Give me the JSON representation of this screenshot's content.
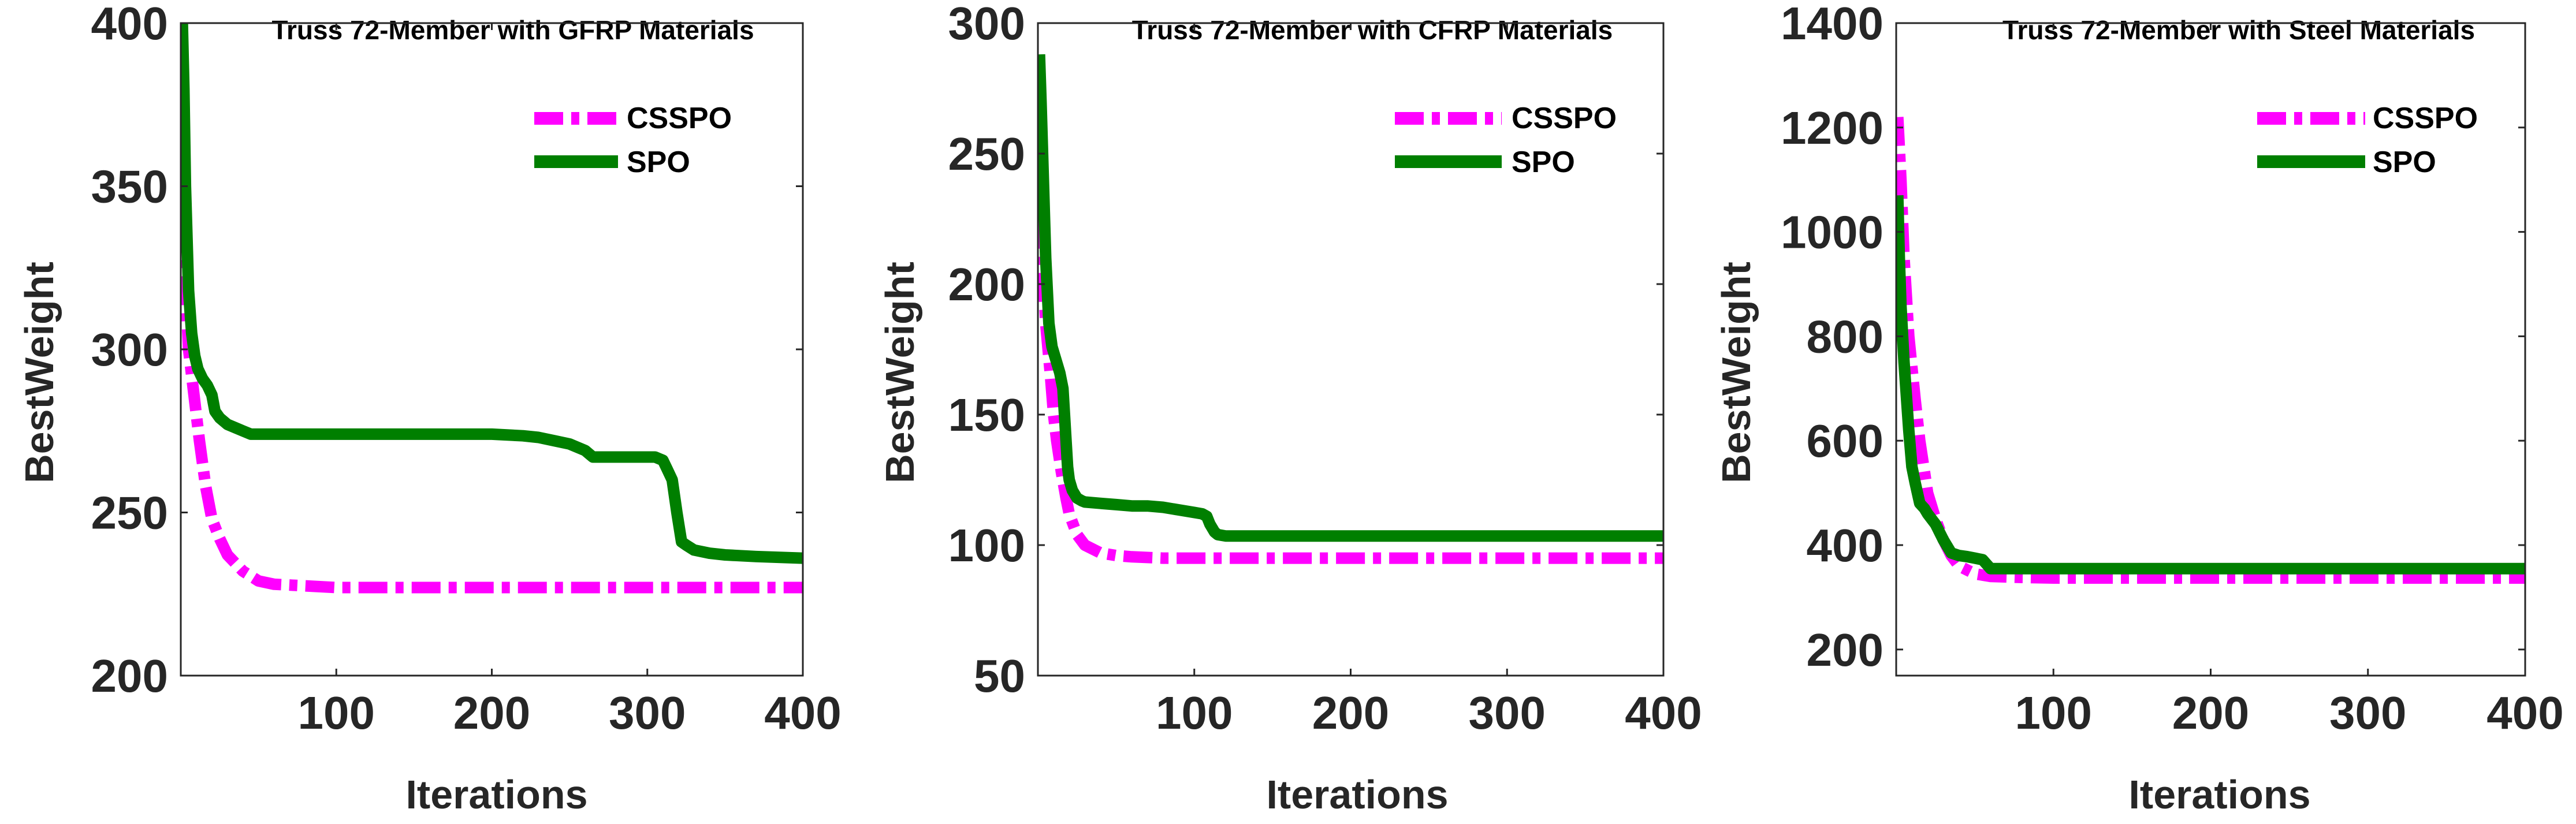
{
  "chart_data": [
    {
      "type": "line",
      "title": "Truss 72-Member with GFRP Materials",
      "xlabel": "Iterations",
      "ylabel": "BestWeight",
      "xlim": [
        0,
        400
      ],
      "ylim": [
        200,
        400
      ],
      "xticks": [
        100,
        200,
        300,
        400
      ],
      "yticks": [
        200,
        250,
        300,
        350,
        400
      ],
      "legend_position": "top-right",
      "series": [
        {
          "name": "CSSPO",
          "color": "#ff00ff",
          "style": "dashdot",
          "x": [
            1,
            3,
            5,
            8,
            12,
            16,
            20,
            25,
            30,
            40,
            50,
            60,
            80,
            100,
            150,
            200,
            250,
            300,
            350,
            400
          ],
          "y": [
            355,
            320,
            300,
            288,
            272,
            258,
            248,
            242,
            237,
            232,
            229,
            228,
            227.5,
            227,
            227,
            227,
            227,
            227,
            227,
            227
          ]
        },
        {
          "name": "SPO",
          "color": "#007f00",
          "style": "solid",
          "x": [
            1,
            2,
            3,
            5,
            7,
            9,
            11,
            14,
            17,
            20,
            22,
            25,
            30,
            35,
            40,
            45,
            50,
            100,
            150,
            200,
            220,
            230,
            240,
            250,
            260,
            265,
            270,
            290,
            305,
            310,
            313,
            316,
            319,
            322,
            325,
            330,
            340,
            350,
            370,
            400
          ],
          "y": [
            400,
            380,
            350,
            318,
            305,
            298,
            294,
            291,
            289,
            286,
            281,
            279,
            277,
            276,
            275,
            274,
            274,
            274,
            274,
            274,
            273.5,
            273,
            272,
            271,
            269,
            267,
            267,
            267,
            267,
            266,
            263,
            260,
            250,
            241,
            240,
            238.5,
            237.5,
            237,
            236.5,
            236
          ]
        }
      ]
    },
    {
      "type": "line",
      "title": "Truss 72-Member with CFRP Materials",
      "xlabel": "Iterations",
      "ylabel": "BestWeight",
      "xlim": [
        0,
        400
      ],
      "ylim": [
        50,
        300
      ],
      "xticks": [
        100,
        200,
        300,
        400
      ],
      "yticks": [
        50,
        100,
        150,
        200,
        250,
        300
      ],
      "legend_position": "top-right",
      "series": [
        {
          "name": "CSSPO",
          "color": "#ff00ff",
          "style": "dashdot",
          "x": [
            1,
            3,
            5,
            8,
            10,
            12,
            15,
            18,
            20,
            25,
            30,
            40,
            50,
            60,
            80,
            100,
            150,
            200,
            300,
            400
          ],
          "y": [
            245,
            210,
            185,
            165,
            150,
            140,
            128,
            118,
            112,
            104,
            100,
            97,
            96,
            95.5,
            95,
            95,
            95,
            95,
            95,
            95
          ]
        },
        {
          "name": "SPO",
          "color": "#007f00",
          "style": "solid",
          "x": [
            1,
            2,
            3,
            5,
            7,
            9,
            10,
            12,
            14,
            16,
            17,
            18,
            19,
            20,
            22,
            25,
            28,
            30,
            40,
            50,
            60,
            70,
            80,
            90,
            100,
            105,
            108,
            110,
            113,
            115,
            120,
            150,
            200,
            300,
            400
          ],
          "y": [
            288,
            270,
            250,
            210,
            185,
            176,
            174,
            170,
            166,
            160,
            150,
            140,
            130,
            125,
            121,
            118,
            117,
            116.5,
            116,
            115.5,
            115,
            115,
            114.5,
            113.5,
            112.5,
            112,
            111,
            108,
            105,
            104,
            103.5,
            103.5,
            103.5,
            103.5,
            103.5
          ]
        }
      ]
    },
    {
      "type": "line",
      "title": "Truss 72-Member with Steel Materials",
      "xlabel": "Iterations",
      "ylabel": "BestWeight",
      "xlim": [
        0,
        400
      ],
      "ylim": [
        150,
        1400
      ],
      "xticks": [
        100,
        200,
        300,
        400
      ],
      "yticks": [
        200,
        400,
        600,
        800,
        1000,
        1200,
        1400
      ],
      "legend_position": "top-right",
      "series": [
        {
          "name": "CSSPO",
          "color": "#ff00ff",
          "style": "dashdot",
          "x": [
            1,
            3,
            5,
            8,
            12,
            15,
            18,
            20,
            25,
            30,
            35,
            40,
            50,
            60,
            80,
            100,
            150,
            200,
            300,
            400
          ],
          "y": [
            1220,
            1100,
            950,
            800,
            680,
            600,
            540,
            500,
            450,
            410,
            380,
            360,
            345,
            340,
            338,
            337,
            337,
            337,
            337,
            337
          ]
        },
        {
          "name": "SPO",
          "color": "#007f00",
          "style": "solid",
          "x": [
            1,
            2,
            3,
            5,
            8,
            10,
            12,
            15,
            18,
            20,
            25,
            30,
            35,
            40,
            45,
            50,
            55,
            57,
            60,
            70,
            100,
            200,
            300,
            400
          ],
          "y": [
            1070,
            950,
            860,
            750,
            620,
            550,
            520,
            480,
            470,
            460,
            440,
            410,
            385,
            380,
            378,
            375,
            372,
            365,
            355,
            355,
            355,
            355,
            355,
            355
          ]
        }
      ]
    }
  ]
}
